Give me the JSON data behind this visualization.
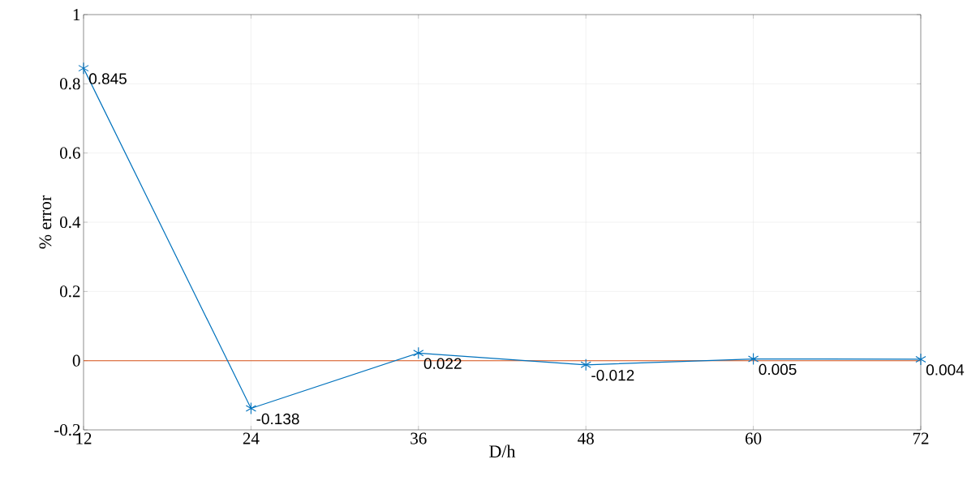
{
  "chart_data": {
    "type": "line",
    "xlabel": "D/h",
    "ylabel": "%  error",
    "x": [
      12,
      24,
      36,
      48,
      60,
      72
    ],
    "series": [
      {
        "color": "#0072bd",
        "values": [
          0.845,
          -0.138,
          0.022,
          -0.012,
          0.005,
          0.004
        ]
      }
    ],
    "xlim": [
      12,
      72
    ],
    "xticks": [
      12,
      24,
      36,
      48,
      60,
      72
    ],
    "ylim": [
      -0.2,
      1
    ],
    "yticks": [
      -0.2,
      0,
      0.2,
      0.4,
      0.6,
      0.8,
      1
    ],
    "ref_lines": [
      {
        "axis": "y",
        "value": 0,
        "color": "#d95319"
      }
    ],
    "grid": true,
    "marker": "cross",
    "line_style": "solid",
    "data_labels": true
  }
}
